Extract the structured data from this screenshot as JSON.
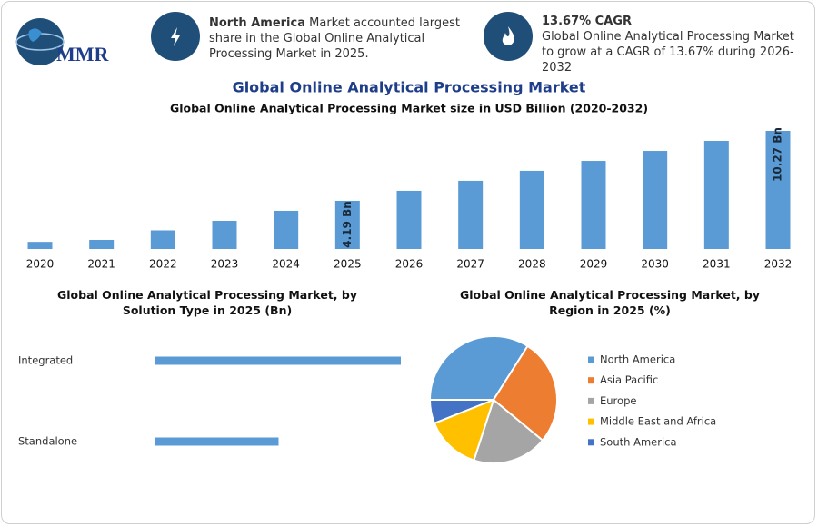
{
  "header": {
    "logo_text": "MMR",
    "card1": {
      "bold": "North America",
      "text": "Market accounted largest share in the Global Online Analytical Processing Market in 2025."
    },
    "card2": {
      "bold": "13.67% CAGR",
      "text": "Global Online Analytical Processing Market to grow at a CAGR of 13.67% during 2026-2032"
    }
  },
  "title": "Global Online Analytical Processing Market",
  "chart_data": [
    {
      "type": "bar",
      "title": "Global Online Analytical Processing Market size in USD Billion (2020-2032)",
      "categories": [
        "2020",
        "2021",
        "2022",
        "2023",
        "2024",
        "2025",
        "2026",
        "2027",
        "2028",
        "2029",
        "2030",
        "2031",
        "2032"
      ],
      "values": [
        0.62,
        0.79,
        1.62,
        2.45,
        3.32,
        4.19,
        5.06,
        5.93,
        6.8,
        7.66,
        8.53,
        9.4,
        10.27
      ],
      "value_labels": [
        null,
        null,
        null,
        null,
        null,
        "4.19 Bn",
        null,
        null,
        null,
        null,
        null,
        null,
        "10.27 Bn"
      ],
      "color": "#5b9bd5"
    },
    {
      "type": "hbar",
      "title": "Global Online Analytical Processing Market, by Solution Type in 2025 (Bn)",
      "categories": [
        "Integrated",
        "Standalone"
      ],
      "values": [
        2.79,
        1.4
      ],
      "color": "#5b9bd5"
    },
    {
      "type": "pie",
      "title": "Global Online Analytical Processing Market, by Region in 2025 (%)",
      "categories": [
        "North America",
        "Asia Pacific",
        "Europe",
        "Middle East and Africa",
        "South America"
      ],
      "values": [
        34,
        27,
        19,
        14,
        6
      ],
      "colors": [
        "#5b9bd5",
        "#ed7d31",
        "#a5a5a5",
        "#ffc000",
        "#4472c4"
      ]
    }
  ]
}
